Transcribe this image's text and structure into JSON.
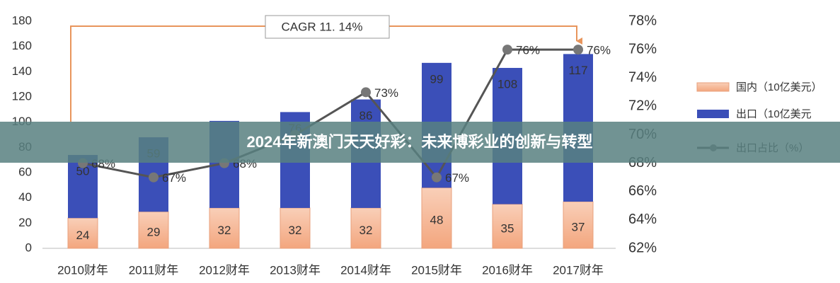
{
  "chart_data": {
    "type": "bar",
    "annotation": "CAGR 11. 14%",
    "banner": "2024年新澳门天天好彩：未来博彩业的创新与转型",
    "categories": [
      "2010财年",
      "2011财年",
      "2012财年",
      "2013财年",
      "2014财年",
      "2015财年",
      "2016财年",
      "2017财年"
    ],
    "series": [
      {
        "name": "国内（10亿美元）",
        "color": "#f6b898",
        "values": [
          24,
          29,
          32,
          32,
          32,
          48,
          35,
          37
        ]
      },
      {
        "name": "出口（10亿美元",
        "color": "#3b4fb8",
        "values": [
          50,
          59,
          69,
          76,
          86,
          99,
          108,
          117
        ],
        "value_labels": [
          "50",
          "59",
          null,
          "76",
          "86",
          "99",
          "108",
          "117"
        ]
      },
      {
        "name": "出口占比（%）",
        "color": "#555555",
        "axis": "y2",
        "values": [
          68,
          67,
          68,
          70,
          73,
          67,
          76,
          76
        ],
        "value_labels": [
          "68%",
          "67%",
          "68%",
          null,
          "73%",
          "67%",
          "76%",
          "76%"
        ]
      }
    ],
    "ylim": [
      0,
      180
    ],
    "yticks": [
      0,
      20,
      40,
      60,
      80,
      100,
      120,
      140,
      160,
      180
    ],
    "y2lim": [
      62,
      78
    ],
    "y2ticks": [
      {
        "value": 62,
        "label": "62%"
      },
      {
        "value": 64,
        "label": "64%"
      },
      {
        "value": 66,
        "label": "66%"
      },
      {
        "value": 68,
        "label": "68%"
      },
      {
        "value": 70,
        "label": "70%"
      },
      {
        "value": 72,
        "label": "72%"
      },
      {
        "value": 74,
        "label": "74%"
      },
      {
        "value": 76,
        "label": "76%"
      },
      {
        "value": 78,
        "label": "78%"
      }
    ]
  }
}
